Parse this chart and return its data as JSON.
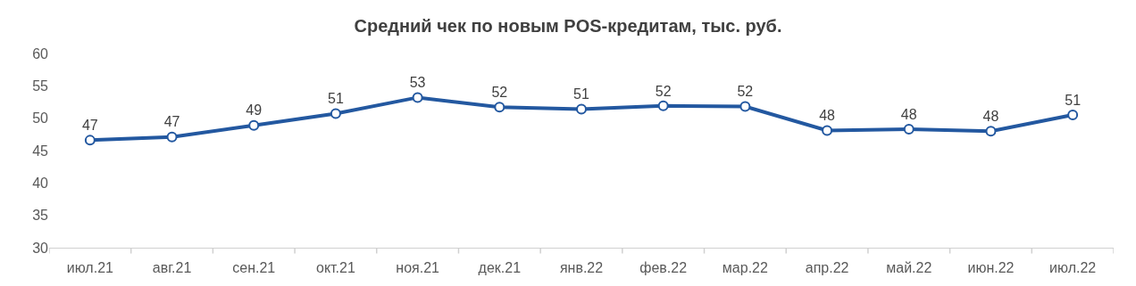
{
  "chart_data": {
    "type": "line",
    "title": "Средний чек по новым POS-кредитам, тыс. руб.",
    "categories": [
      "июл.21",
      "авг.21",
      "сен.21",
      "окт.21",
      "ноя.21",
      "дек.21",
      "янв.22",
      "фев.22",
      "мар.22",
      "апр.22",
      "май.22",
      "июн.22",
      "июл.22"
    ],
    "series": [
      {
        "color": "#2358a0",
        "values": [
          46.6,
          47.1,
          48.9,
          50.7,
          53.2,
          51.7,
          51.4,
          51.9,
          51.8,
          48.1,
          48.3,
          48.0,
          50.5
        ],
        "value_labels": [
          "47",
          "47",
          "49",
          "51",
          "53",
          "52",
          "51",
          "52",
          "52",
          "48",
          "48",
          "48",
          "51"
        ]
      }
    ],
    "ylim": [
      30,
      60
    ],
    "yticks": [
      30,
      35,
      40,
      45,
      50,
      55,
      60
    ],
    "marker": "circle",
    "line_style": "solid"
  }
}
